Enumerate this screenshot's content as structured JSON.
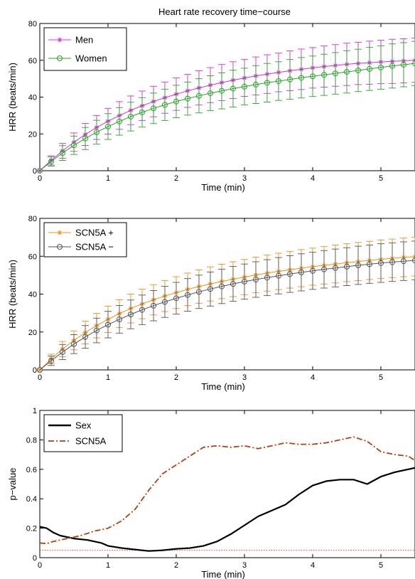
{
  "chart_data": [
    {
      "type": "line",
      "title": "Heart rate recovery time−course",
      "xlabel": "Time (min)",
      "ylabel": "HRR (beats/min)",
      "xlim": [
        0,
        5.5
      ],
      "ylim": [
        0,
        80
      ],
      "xticks": [
        "0",
        "1",
        "2",
        "3",
        "4",
        "5"
      ],
      "yticks": [
        "0",
        "20",
        "40",
        "60",
        "80"
      ],
      "legend_position": "top-left",
      "error_bars": true,
      "x": [
        0,
        0.167,
        0.333,
        0.5,
        0.667,
        0.833,
        1.0,
        1.167,
        1.333,
        1.5,
        1.667,
        1.833,
        2.0,
        2.167,
        2.333,
        2.5,
        2.667,
        2.833,
        3.0,
        3.167,
        3.333,
        3.5,
        3.667,
        3.833,
        4.0,
        4.167,
        4.333,
        4.5,
        4.667,
        4.833,
        5.0,
        5.167,
        5.333,
        5.5
      ],
      "series": [
        {
          "name": "Men",
          "color": "#cc33cc",
          "marker": "asterisk",
          "values": [
            0,
            5.6,
            10.8,
            15.5,
            19.7,
            23.5,
            26.9,
            30.0,
            32.8,
            35.3,
            37.6,
            39.7,
            41.6,
            43.4,
            45.0,
            46.5,
            47.9,
            49.2,
            50.4,
            51.5,
            52.5,
            53.4,
            54.3,
            55.1,
            55.9,
            56.6,
            57.2,
            57.8,
            58.3,
            58.7,
            59.1,
            59.4,
            59.7,
            60.0
          ],
          "error": [
            0,
            2.5,
            4.0,
            5.0,
            6.0,
            6.5,
            7.0,
            7.5,
            7.8,
            8.0,
            8.3,
            8.5,
            8.8,
            9.0,
            9.3,
            9.5,
            9.8,
            10.0,
            10.0,
            10.3,
            10.5,
            10.5,
            10.8,
            11.0,
            11.0,
            11.2,
            11.3,
            11.5,
            11.5,
            11.7,
            11.8,
            12.0,
            12.0,
            12.0
          ]
        },
        {
          "name": "Women",
          "color": "#2ca02c",
          "marker": "circle",
          "values": [
            0,
            5.0,
            9.6,
            13.8,
            17.5,
            20.9,
            24.0,
            26.8,
            29.4,
            31.7,
            33.9,
            35.8,
            37.6,
            39.2,
            40.7,
            42.1,
            43.4,
            44.6,
            45.7,
            46.8,
            47.8,
            48.7,
            49.6,
            50.5,
            51.3,
            52.1,
            52.9,
            53.7,
            54.5,
            55.3,
            56.1,
            56.9,
            57.6,
            58.3
          ],
          "error": [
            0,
            2.5,
            4.0,
            5.0,
            6.0,
            6.5,
            7.0,
            7.5,
            7.8,
            8.0,
            8.3,
            8.5,
            8.8,
            9.0,
            9.3,
            9.5,
            9.8,
            10.0,
            10.0,
            10.3,
            10.5,
            10.5,
            10.8,
            11.0,
            11.0,
            11.2,
            11.3,
            11.5,
            11.5,
            11.7,
            11.8,
            12.0,
            12.0,
            12.0
          ]
        }
      ]
    },
    {
      "type": "line",
      "title": "",
      "xlabel": "Time (min)",
      "ylabel": "HRR (beats/min)",
      "xlim": [
        0,
        5.5
      ],
      "ylim": [
        0,
        80
      ],
      "xticks": [
        "0",
        "1",
        "2",
        "3",
        "4",
        "5"
      ],
      "yticks": [
        "0",
        "20",
        "40",
        "60",
        "80"
      ],
      "legend_position": "top-left",
      "error_bars": true,
      "x": [
        0,
        0.167,
        0.333,
        0.5,
        0.667,
        0.833,
        1.0,
        1.167,
        1.333,
        1.5,
        1.667,
        1.833,
        2.0,
        2.167,
        2.333,
        2.5,
        2.667,
        2.833,
        3.0,
        3.167,
        3.333,
        3.5,
        3.667,
        3.833,
        4.0,
        4.167,
        4.333,
        4.5,
        4.667,
        4.833,
        5.0,
        5.167,
        5.333,
        5.5
      ],
      "series": [
        {
          "name": "SCN5A +",
          "color": "#e8921c",
          "marker": "asterisk",
          "values": [
            0,
            5.8,
            11.0,
            15.6,
            19.7,
            23.4,
            26.7,
            29.7,
            32.4,
            34.8,
            37.0,
            39.0,
            40.8,
            42.5,
            44.0,
            45.4,
            46.7,
            47.9,
            49.0,
            50.1,
            51.1,
            52.0,
            52.9,
            53.7,
            54.5,
            55.2,
            55.9,
            56.6,
            57.2,
            57.8,
            58.4,
            58.9,
            59.4,
            59.8
          ],
          "error": [
            0,
            2.5,
            4.0,
            5.0,
            6.0,
            6.5,
            7.0,
            7.3,
            7.6,
            7.8,
            8.0,
            8.2,
            8.4,
            8.6,
            8.8,
            9.0,
            9.1,
            9.2,
            9.3,
            9.4,
            9.5,
            9.6,
            9.7,
            9.8,
            9.8,
            9.9,
            10.0,
            10.0,
            10.1,
            10.1,
            10.2,
            10.2,
            10.2,
            10.2
          ]
        },
        {
          "name": "SCN5A −",
          "color": "#555555",
          "marker": "circle",
          "values": [
            0,
            4.8,
            9.4,
            13.6,
            17.4,
            20.8,
            23.9,
            26.7,
            29.3,
            31.7,
            33.9,
            35.9,
            37.8,
            39.6,
            41.2,
            42.7,
            44.1,
            45.4,
            46.6,
            47.7,
            48.7,
            49.7,
            50.6,
            51.5,
            52.3,
            53.1,
            53.8,
            54.5,
            55.2,
            55.8,
            56.4,
            56.9,
            57.4,
            57.8
          ],
          "error": [
            0,
            2.5,
            4.0,
            5.0,
            6.0,
            6.5,
            7.0,
            7.3,
            7.6,
            7.8,
            8.0,
            8.2,
            8.4,
            8.6,
            8.8,
            9.0,
            9.1,
            9.2,
            9.3,
            9.4,
            9.5,
            9.6,
            9.7,
            9.8,
            9.8,
            9.9,
            10.0,
            10.0,
            10.1,
            10.1,
            10.2,
            10.2,
            10.2,
            10.2
          ]
        }
      ]
    },
    {
      "type": "line",
      "title": "",
      "xlabel": "Time (min)",
      "ylabel": "p−value",
      "xlim": [
        0,
        5.5
      ],
      "ylim": [
        0,
        1
      ],
      "xticks": [
        "0",
        "1",
        "2",
        "3",
        "4",
        "5"
      ],
      "yticks": [
        "0",
        "0.2",
        "0.4",
        "0.6",
        "0.8",
        "1"
      ],
      "legend_position": "top-left",
      "reference_line": {
        "y": 0.05,
        "color": "#ff3333",
        "style": "dotted"
      },
      "series": [
        {
          "name": "Sex",
          "color": "#000000",
          "style": "solid",
          "x": [
            0,
            0.1,
            0.2,
            0.3,
            0.5,
            0.7,
            0.9,
            1.0,
            1.2,
            1.4,
            1.6,
            1.8,
            2.0,
            2.2,
            2.4,
            2.6,
            2.8,
            3.0,
            3.2,
            3.4,
            3.6,
            3.8,
            4.0,
            4.2,
            4.4,
            4.6,
            4.8,
            5.0,
            5.2,
            5.5
          ],
          "values": [
            0.21,
            0.2,
            0.17,
            0.15,
            0.13,
            0.12,
            0.1,
            0.08,
            0.065,
            0.055,
            0.045,
            0.05,
            0.06,
            0.065,
            0.08,
            0.11,
            0.16,
            0.22,
            0.28,
            0.32,
            0.36,
            0.43,
            0.49,
            0.52,
            0.53,
            0.53,
            0.5,
            0.55,
            0.58,
            0.61
          ]
        },
        {
          "name": "SCN5A",
          "color": "#b3400f",
          "style": "dashdot",
          "x": [
            0,
            0.1,
            0.2,
            0.4,
            0.6,
            0.8,
            1.0,
            1.2,
            1.4,
            1.6,
            1.8,
            2.0,
            2.2,
            2.4,
            2.6,
            2.8,
            3.0,
            3.2,
            3.4,
            3.6,
            3.8,
            4.0,
            4.2,
            4.4,
            4.6,
            4.8,
            5.0,
            5.2,
            5.4,
            5.5
          ],
          "values": [
            0.1,
            0.095,
            0.11,
            0.13,
            0.15,
            0.18,
            0.2,
            0.25,
            0.33,
            0.46,
            0.57,
            0.63,
            0.69,
            0.75,
            0.76,
            0.75,
            0.76,
            0.74,
            0.76,
            0.78,
            0.77,
            0.77,
            0.78,
            0.8,
            0.82,
            0.79,
            0.72,
            0.7,
            0.69,
            0.66
          ]
        }
      ]
    }
  ]
}
